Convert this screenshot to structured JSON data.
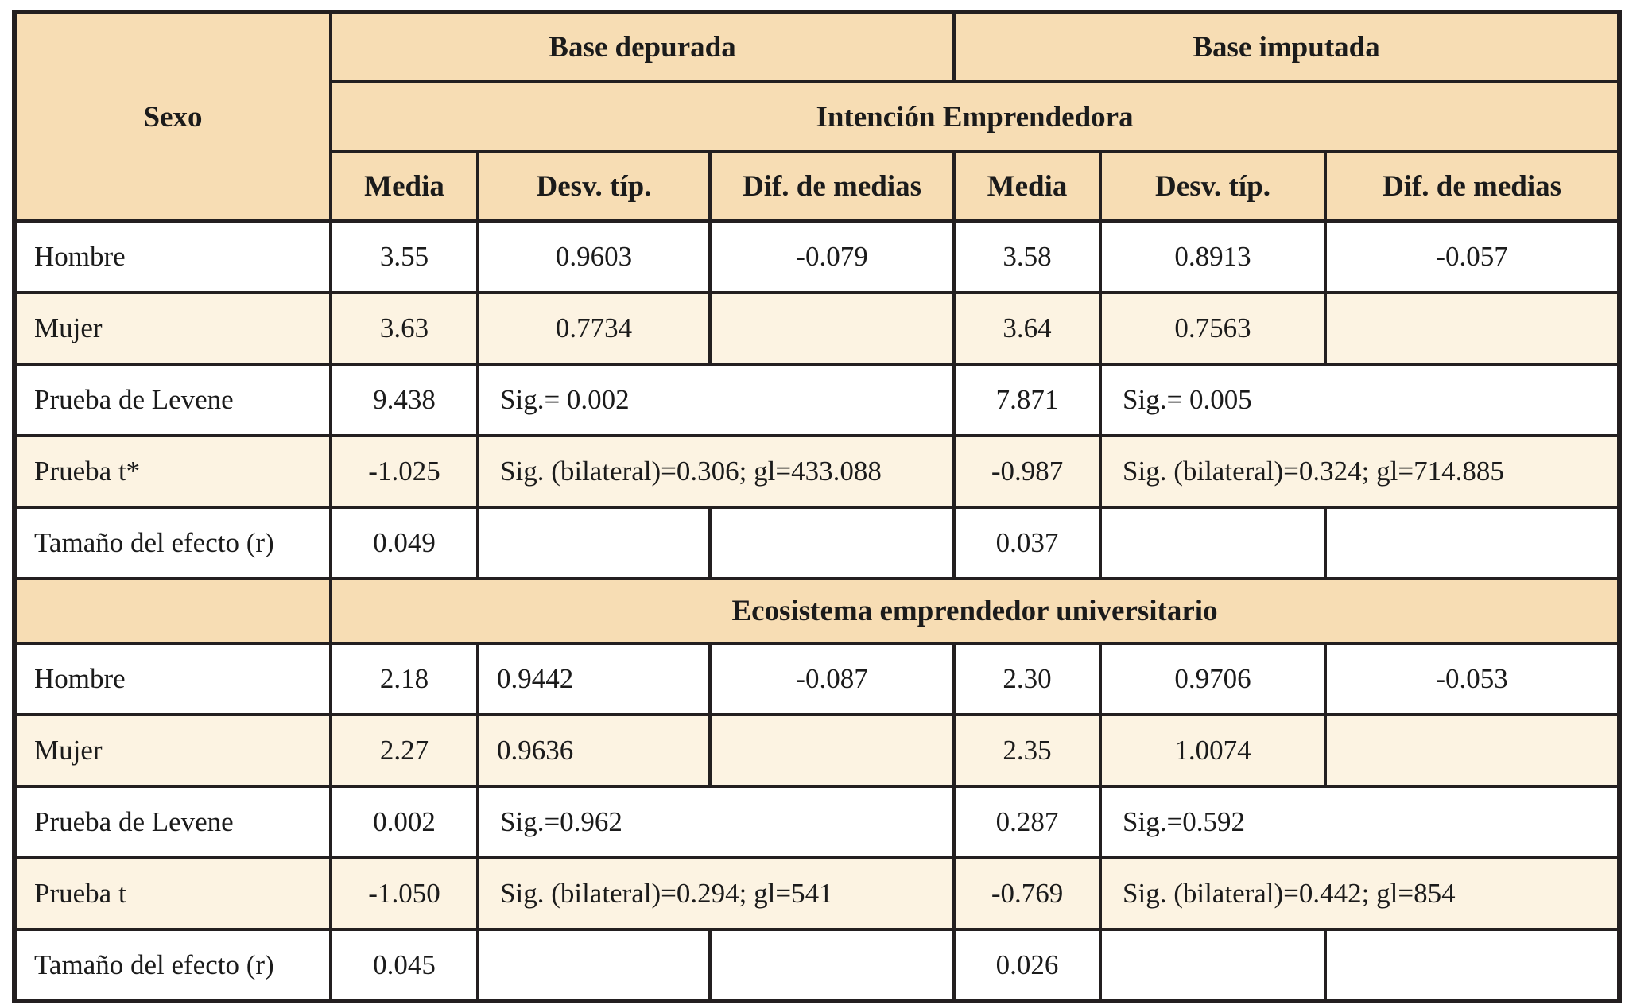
{
  "colors": {
    "header_fill": "#f7ddb4",
    "stripe_fill": "#fcf3e2",
    "row_fill": "#ffffff",
    "border": "#231f20",
    "text": "#1b1b1b"
  },
  "table": {
    "corner_label": "Sexo",
    "group_headers": [
      "Base depurada",
      "Base imputada"
    ],
    "column_headers": [
      "Media",
      "Desv. típ.",
      "Dif. de medias",
      "Media",
      "Desv. típ.",
      "Dif. de medias"
    ],
    "section_titles": [
      "Intención Emprendedora",
      "Ecosistema emprendedor universitario"
    ]
  },
  "sections": [
    {
      "title": "Intención Emprendedora",
      "rows": [
        {
          "label": "Hombre",
          "media1": "3.55",
          "desv1": "0.9603",
          "dif1": "-0.079",
          "media2": "3.58",
          "desv2": "0.8913",
          "dif2": "-0.057"
        },
        {
          "label": "Mujer",
          "media1": "3.63",
          "desv1": "0.7734",
          "dif1": "",
          "media2": "3.64",
          "desv2": "0.7563",
          "dif2": ""
        },
        {
          "label": "Prueba de Levene",
          "media1": "9.438",
          "sig1": "Sig.= 0.002",
          "media2": "7.871",
          "sig2": "Sig.= 0.005"
        },
        {
          "label": "Prueba t*",
          "media1": "-1.025",
          "sig1": "Sig. (bilateral)=0.306; gl=433.088",
          "media2": "-0.987",
          "sig2": "Sig. (bilateral)=0.324; gl=714.885"
        },
        {
          "label": "Tamaño del efecto (r)",
          "media1": "0.049",
          "media2": "0.037"
        }
      ]
    },
    {
      "title": "Ecosistema emprendedor universitario",
      "rows": [
        {
          "label": "Hombre",
          "media1": "2.18",
          "desv1": "0.9442",
          "dif1": "-0.087",
          "media2": "2.30",
          "desv2": "0.9706",
          "dif2": "-0.053"
        },
        {
          "label": "Mujer",
          "media1": "2.27",
          "desv1": "0.9636",
          "dif1": "",
          "media2": "2.35",
          "desv2": "1.0074",
          "dif2": ""
        },
        {
          "label": "Prueba de Levene",
          "media1": "0.002",
          "sig1": "Sig.=0.962",
          "media2": "0.287",
          "sig2": "Sig.=0.592"
        },
        {
          "label": "Prueba t",
          "media1": "-1.050",
          "sig1": "Sig. (bilateral)=0.294; gl=541",
          "media2": "-0.769",
          "sig2": "Sig. (bilateral)=0.442; gl=854"
        },
        {
          "label": "Tamaño del efecto (r)",
          "media1": "0.045",
          "media2": "0.026"
        }
      ]
    }
  ]
}
